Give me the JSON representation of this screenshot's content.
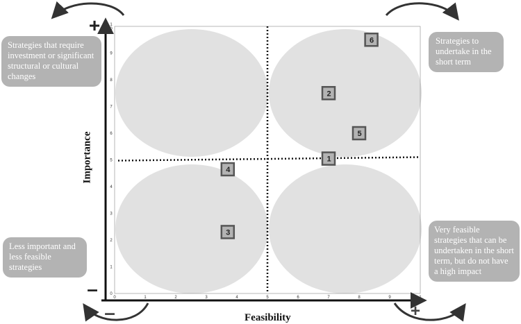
{
  "chart_data": {
    "type": "scatter",
    "title": "",
    "xlabel": "Feasibility",
    "ylabel": "Importance",
    "xlim": [
      0,
      10
    ],
    "ylim": [
      0,
      10
    ],
    "x_ticks": [
      "0",
      "1",
      "2",
      "3",
      "4",
      "5",
      "6",
      "7",
      "8",
      "9",
      "1\n0"
    ],
    "y_ticks": [
      "0",
      "1",
      "2",
      "3",
      "4",
      "5",
      "6",
      "7",
      "8",
      "9",
      "1\n0"
    ],
    "divider_x": 5,
    "divider_y": 5,
    "grid": false,
    "points": [
      {
        "label": "1",
        "x": 7.0,
        "y": 5.05
      },
      {
        "label": "2",
        "x": 7.0,
        "y": 7.5
      },
      {
        "label": "3",
        "x": 3.7,
        "y": 2.3
      },
      {
        "label": "4",
        "x": 3.7,
        "y": 4.65
      },
      {
        "label": "5",
        "x": 8.0,
        "y": 6.0
      },
      {
        "label": "6",
        "x": 8.4,
        "y": 9.5
      }
    ],
    "axis_signs": {
      "y_high": "+",
      "y_low": "–",
      "x_low": "–",
      "x_high": "+"
    },
    "colors": {
      "quadrant": "#e1e1e1",
      "marker": "#b3b3b3",
      "marker_border": "#555555",
      "note": "#b3b3b3"
    }
  },
  "annotations": {
    "top_left": "Strategies that require investment or significant structural or cultural changes",
    "top_right": "Strategies to undertake in the short term",
    "bottom_left": "Less important and less feasible strategies",
    "bottom_right": "Very feasible strategies that can be undertaken in the short term, but do not have a high impact"
  }
}
